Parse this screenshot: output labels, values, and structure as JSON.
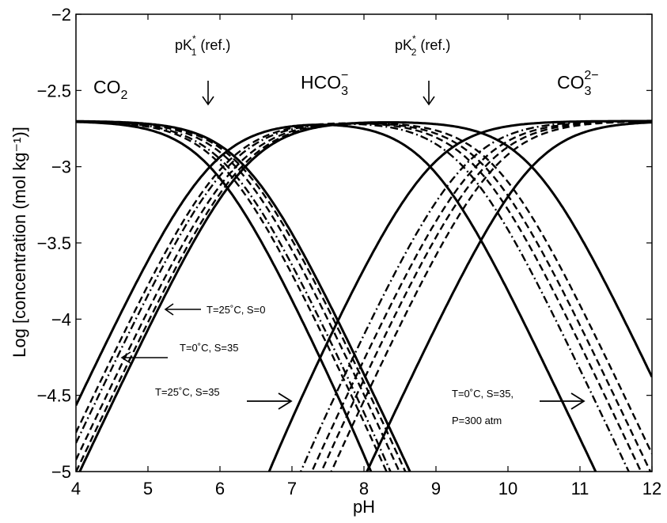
{
  "chart_data": {
    "type": "line",
    "xlabel": "pH",
    "ylabel": "Log [concentration (mol kg⁻¹)]",
    "xlim": [
      4,
      12
    ],
    "ylim": [
      -5,
      -2
    ],
    "xticks": [
      "4",
      "5",
      "6",
      "7",
      "8",
      "9",
      "10",
      "11",
      "12"
    ],
    "yticks": [
      "-2",
      "-2.5",
      "-3",
      "-3.5",
      "-4",
      "-4.5",
      "-5"
    ],
    "total_log_conc": -2.7,
    "species_labels": {
      "co2": {
        "base": "CO",
        "sub": "2"
      },
      "hco3": {
        "base": "HCO",
        "sub": "3",
        "sup": "−"
      },
      "co3": {
        "base": "CO",
        "sub": "3",
        "sup": "2−"
      }
    },
    "ref_labels": {
      "pk1": {
        "base": "pK",
        "sub": "1",
        "sup": "*",
        "tail": " (ref.)"
      },
      "pk2": {
        "base": "pK",
        "sub": "2",
        "sup": "*",
        "tail": " (ref.)"
      }
    },
    "series": [
      {
        "name": "T=25˚C, S=0",
        "style": "solid",
        "pK1": 6.35,
        "pK2": 10.33
      },
      {
        "name": "T=0˚C,  S=35",
        "style": "dash-dot",
        "pK1": 6.11,
        "pK2": 9.38
      },
      {
        "name": "T=25˚C, S=35",
        "style": "solid",
        "pK1": 5.86,
        "pK2": 8.92
      },
      {
        "name": "T=0˚C, S=35, P=300 atm",
        "style": "dashed",
        "pK1": 6.22,
        "pK2": 9.68
      }
    ],
    "extra_curves": [
      {
        "style": "dashed",
        "pK1": 6.3,
        "pK2": 9.82
      },
      {
        "style": "dashed",
        "pK1": 6.04,
        "pK2": 9.55
      }
    ],
    "annotations": [
      {
        "line1": "T=25˚C, S=0"
      },
      {
        "line1": "T=0˚C,  S=35"
      },
      {
        "line1": "T=25˚C, S=35"
      },
      {
        "line1": "T=0˚C, S=35,",
        "line2": "P=300 atm"
      }
    ]
  }
}
